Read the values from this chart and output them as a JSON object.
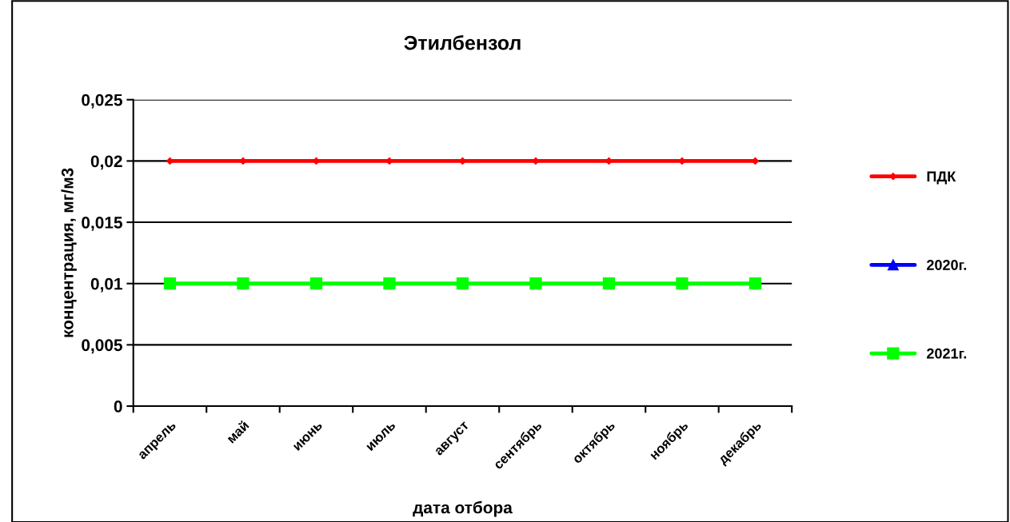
{
  "chart_data": {
    "type": "line",
    "title": "Этилбензол",
    "xlabel": "дата отбора",
    "ylabel": "концентрация, мг/м3",
    "categories": [
      "апрель",
      "май",
      "июнь",
      "июль",
      "август",
      "сентябрь",
      "октябрь",
      "ноябрь",
      "декабрь"
    ],
    "series": [
      {
        "name": "ПДК",
        "color": "#ff0000",
        "marker": "diamond",
        "values": [
          0.02,
          0.02,
          0.02,
          0.02,
          0.02,
          0.02,
          0.02,
          0.02,
          0.02
        ]
      },
      {
        "name": "2020г.",
        "color": "#0000ff",
        "marker": "triangle",
        "values": [
          null,
          null,
          null,
          null,
          null,
          null,
          null,
          null,
          null
        ]
      },
      {
        "name": "2021г.",
        "color": "#00ff00",
        "marker": "square",
        "values": [
          0.01,
          0.01,
          0.01,
          0.01,
          0.01,
          0.01,
          0.01,
          0.01,
          0.01
        ]
      }
    ],
    "ylim": [
      0,
      0.025
    ],
    "yticks": [
      {
        "value": 0,
        "label": "0"
      },
      {
        "value": 0.005,
        "label": "0,005"
      },
      {
        "value": 0.01,
        "label": "0,01"
      },
      {
        "value": 0.015,
        "label": "0,015"
      },
      {
        "value": 0.02,
        "label": "0,02"
      },
      {
        "value": 0.025,
        "label": "0,025"
      }
    ],
    "grid": "y",
    "legend": "right",
    "line_style": "solid"
  }
}
